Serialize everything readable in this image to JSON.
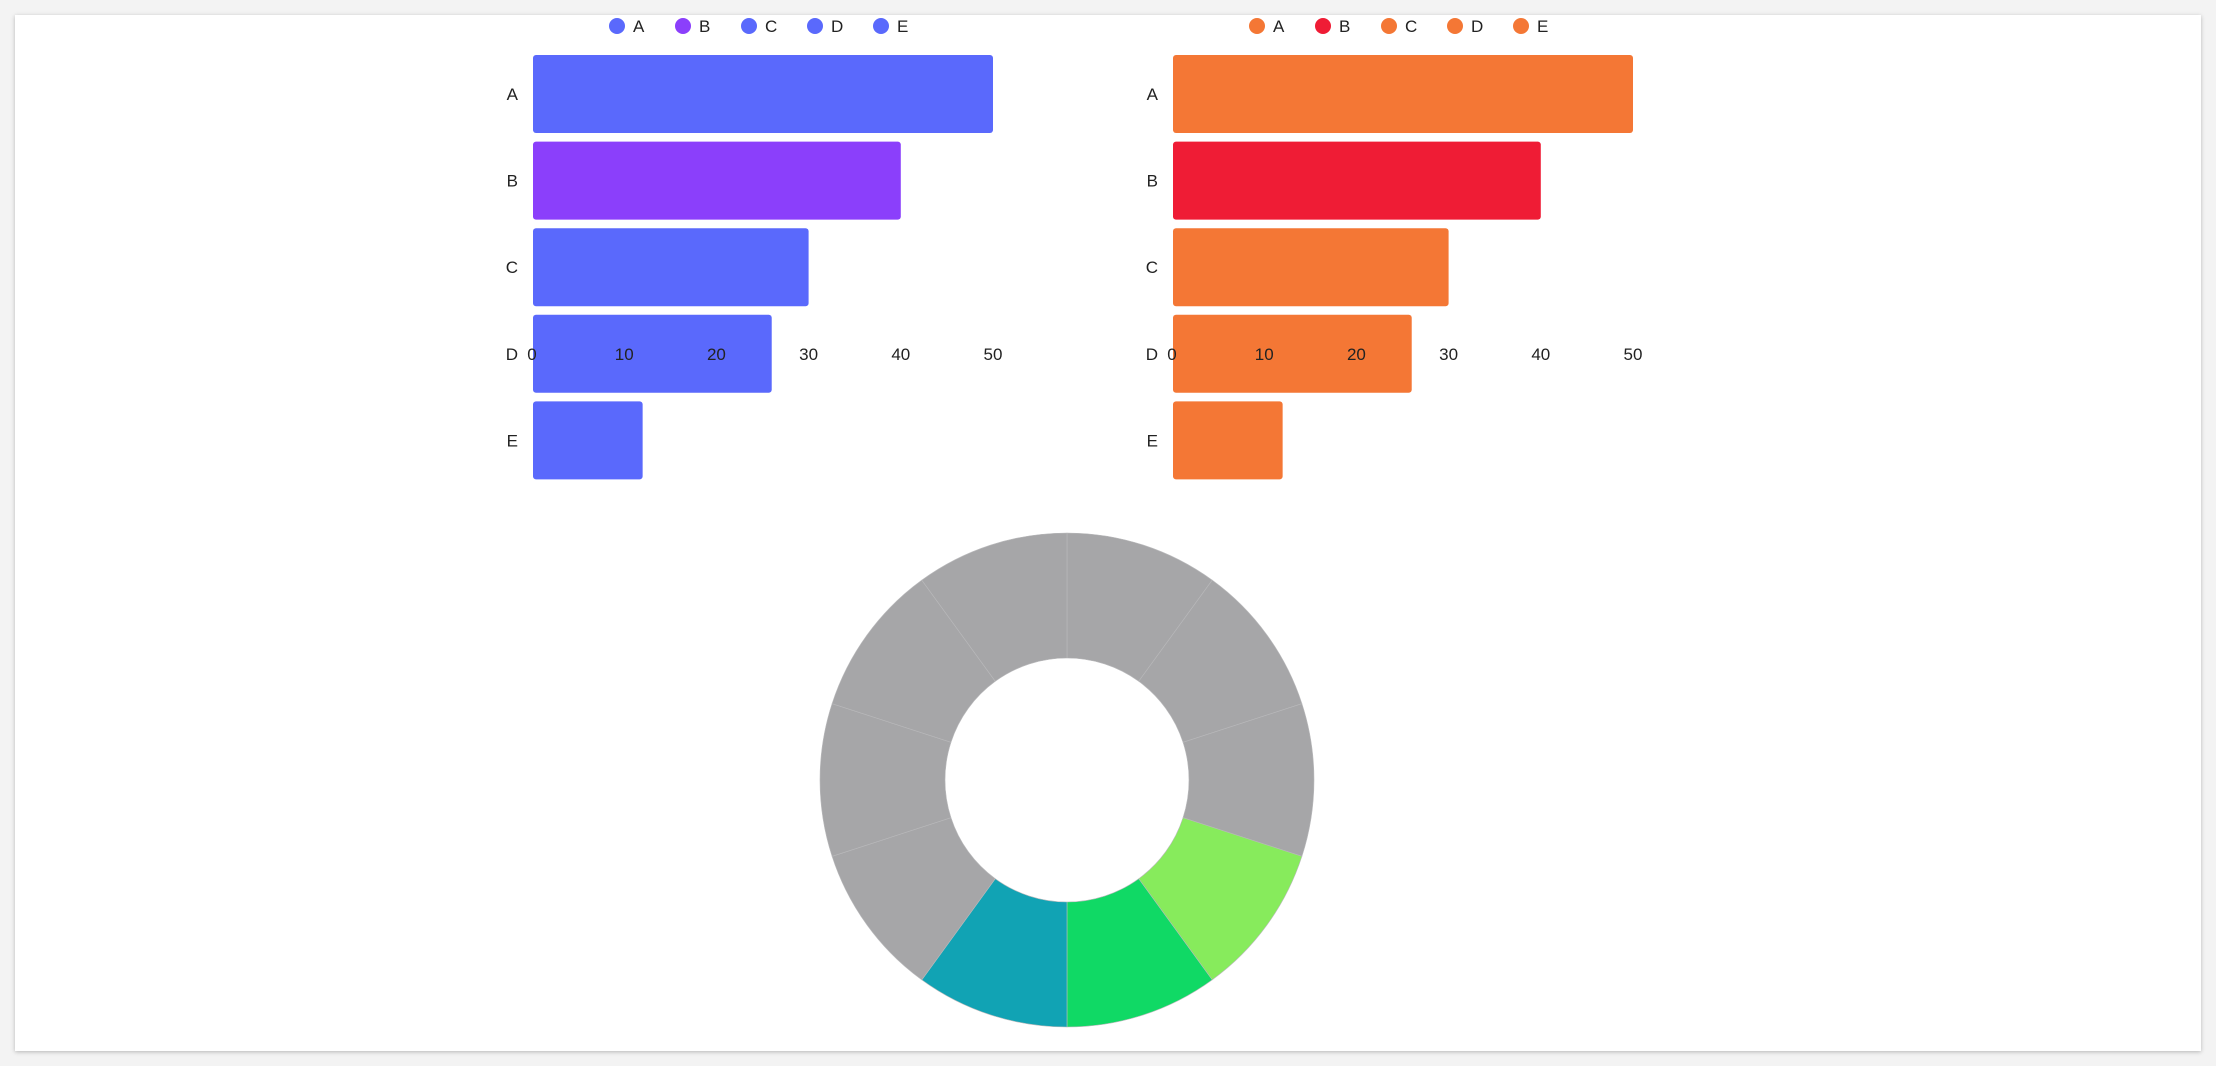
{
  "colors": {
    "left_default": "#5a69fc",
    "left_highlight": "#8b3ffb",
    "right_default": "#f47735",
    "right_highlight": "#ef1c35",
    "donut_gray": "#a6a6a8",
    "donut_light_green": "#87eb5c",
    "donut_green": "#10d965",
    "donut_teal": "#11a3b4"
  },
  "chart_data": [
    {
      "type": "bar",
      "orientation": "horizontal",
      "categories": [
        "A",
        "B",
        "C",
        "D",
        "E"
      ],
      "values": [
        50,
        40,
        30,
        26,
        12
      ],
      "bar_colors": [
        "#5a69fc",
        "#8b3ffb",
        "#5a69fc",
        "#5a69fc",
        "#5a69fc"
      ],
      "legend": [
        "A",
        "B",
        "C",
        "D",
        "E"
      ],
      "legend_position": "top",
      "xlim": [
        0,
        50
      ],
      "xticks": [
        "0",
        "10",
        "20",
        "30",
        "40",
        "50"
      ],
      "title": "",
      "xlabel": "",
      "ylabel": ""
    },
    {
      "type": "bar",
      "orientation": "horizontal",
      "categories": [
        "A",
        "B",
        "C",
        "D",
        "E"
      ],
      "values": [
        50,
        40,
        30,
        26,
        12
      ],
      "bar_colors": [
        "#f47735",
        "#ef1c35",
        "#f47735",
        "#f47735",
        "#f47735"
      ],
      "legend": [
        "A",
        "B",
        "C",
        "D",
        "E"
      ],
      "legend_position": "top",
      "xlim": [
        0,
        50
      ],
      "xticks": [
        "0",
        "10",
        "20",
        "30",
        "40",
        "50"
      ],
      "title": "",
      "xlabel": "",
      "ylabel": ""
    },
    {
      "type": "pie",
      "donut": true,
      "values": [
        1,
        1,
        1,
        1,
        1,
        1,
        1,
        1,
        1,
        1
      ],
      "slice_colors": [
        "#a6a6a8",
        "#a6a6a8",
        "#a6a6a8",
        "#87eb5c",
        "#10d965",
        "#11a3b4",
        "#a6a6a8",
        "#a6a6a8",
        "#a6a6a8",
        "#a6a6a8"
      ]
    }
  ]
}
